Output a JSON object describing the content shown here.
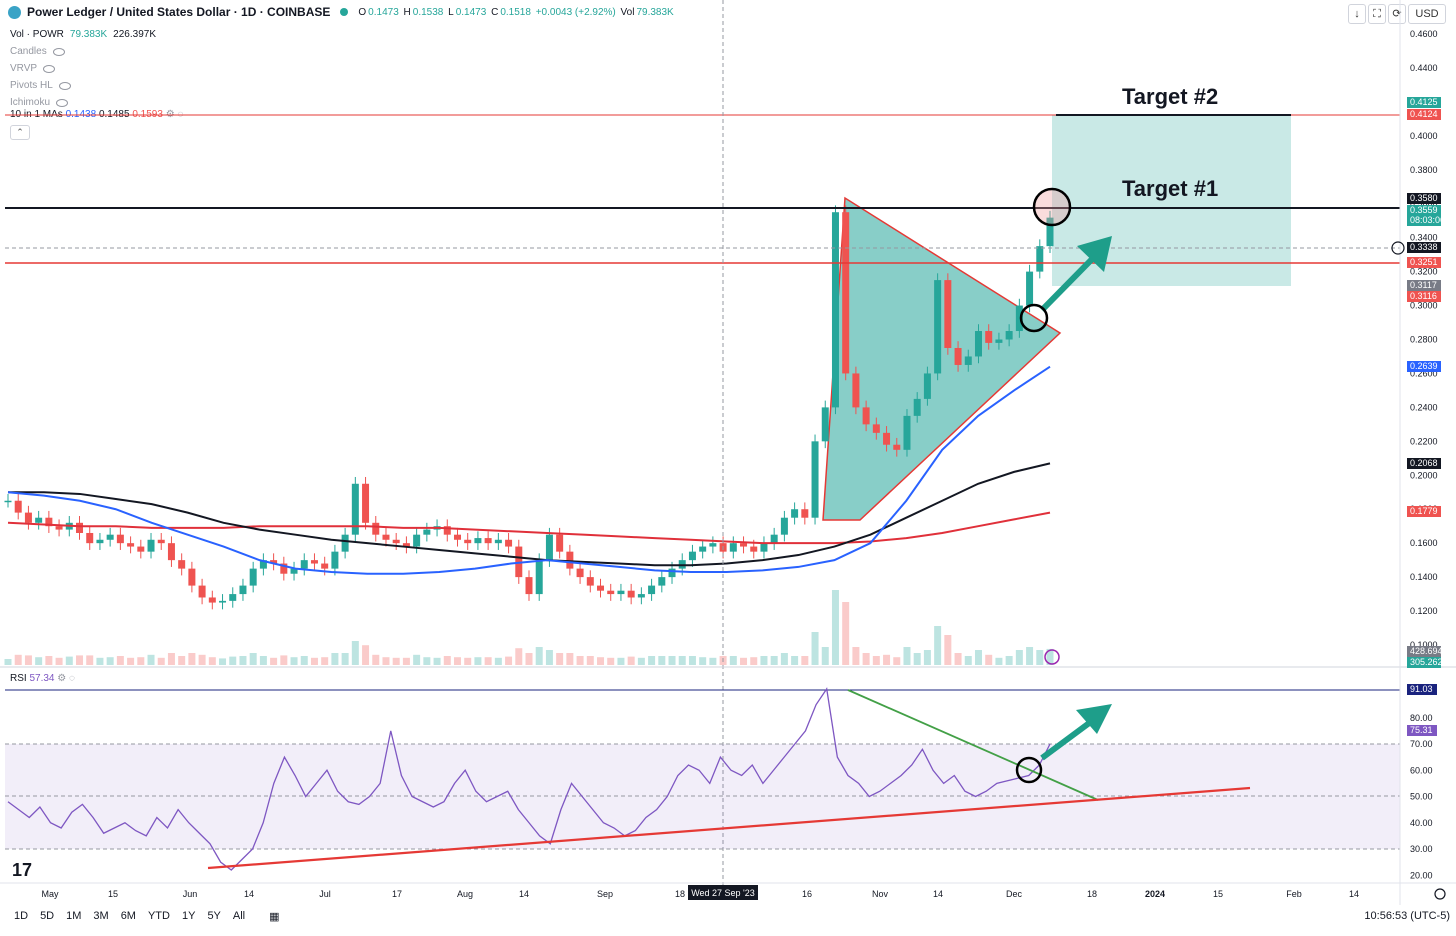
{
  "header": {
    "symbol_title": "Power Ledger / United States Dollar · 1D · COINBASE",
    "o_label": "O",
    "o_val": "0.1473",
    "h_label": "H",
    "h_val": "0.1538",
    "l_label": "L",
    "l_val": "0.1473",
    "c_label": "C",
    "c_val": "0.1518",
    "change": "+0.0043 (+2.92%)",
    "vol_label": "Vol",
    "vol_val": "79.383K"
  },
  "indicators": {
    "vol_name": "Vol · POWR",
    "vol_v1": "79.383K",
    "vol_v2": "226.397K",
    "list": [
      "Candles",
      "VRVP",
      "Pivots HL",
      "Ichimoku"
    ],
    "ma_name": "10 in 1 MAs",
    "ma_v1": "0.1438",
    "ma_v2": "0.1485",
    "ma_v3": "0.1593"
  },
  "top_buttons": {
    "down": "↓",
    "expand": "⛶",
    "camera": "⟳",
    "currency": "USD"
  },
  "annotations": {
    "target1": "Target #1",
    "target2": "Target #2"
  },
  "rsi": {
    "name": "RSI",
    "value": "57.34"
  },
  "bottom": {
    "ranges": [
      "1D",
      "5D",
      "1M",
      "3M",
      "6M",
      "YTD",
      "1Y",
      "5Y",
      "All"
    ],
    "clock": "10:56:53 (UTC-5)"
  },
  "colors": {
    "up": "#26a69a",
    "down": "#ef5350",
    "ma_blue": "#2962ff",
    "ma_black": "#131722",
    "ma_red": "#e0303a",
    "rsi": "#7e57c2",
    "teal_fill": "#26a69a"
  },
  "chart_data": [
    {
      "type": "line",
      "title": "Power Ledger / United States Dollar · 1D · COINBASE",
      "ylim": [
        0.09,
        0.47
      ],
      "y_ticks": [
        "0.4600",
        "0.4400",
        "0.4200",
        "0.4000",
        "0.3800",
        "0.3600",
        "0.3400",
        "0.3200",
        "0.3000",
        "0.2800",
        "0.2600",
        "0.2400",
        "0.2200",
        "0.2000",
        "0.1800",
        "0.1600",
        "0.1400",
        "0.1200",
        "0.1000"
      ],
      "x_ticks": [
        "May",
        "15",
        "Jun",
        "14",
        "Jul",
        "17",
        "Aug",
        "14",
        "Sep",
        "18",
        "16",
        "Nov",
        "14",
        "Dec",
        "18",
        "2024",
        "15",
        "Feb",
        "14"
      ],
      "crosshair_date": "Wed 27 Sep '23",
      "price_tags": [
        {
          "value": "0.4125",
          "color": "#26a69a"
        },
        {
          "value": "0.4124",
          "color": "#ef5350"
        },
        {
          "value": "0.3580",
          "color": "#131722"
        },
        {
          "value": "0.3559",
          "color": "#26a69a"
        },
        {
          "value": "08:03:06",
          "color": "#26a69a"
        },
        {
          "value": "0.3338",
          "color": "#131722"
        },
        {
          "value": "0.3251",
          "color": "#ef5350"
        },
        {
          "value": "0.3117",
          "color": "#787b86"
        },
        {
          "value": "0.3116",
          "color": "#ef5350"
        },
        {
          "value": "0.2639",
          "color": "#2962ff"
        },
        {
          "value": "0.2068",
          "color": "#131722"
        },
        {
          "value": "0.1779",
          "color": "#ef5350"
        },
        {
          "value": "428.694K",
          "color": "#787b86"
        },
        {
          "value": "305.262K",
          "color": "#26a69a"
        }
      ],
      "close_series": [
        0.185,
        0.178,
        0.172,
        0.175,
        0.17,
        0.168,
        0.172,
        0.166,
        0.16,
        0.162,
        0.165,
        0.16,
        0.158,
        0.155,
        0.162,
        0.16,
        0.15,
        0.145,
        0.135,
        0.128,
        0.125,
        0.126,
        0.13,
        0.135,
        0.145,
        0.15,
        0.148,
        0.142,
        0.145,
        0.15,
        0.148,
        0.145,
        0.155,
        0.165,
        0.195,
        0.172,
        0.165,
        0.162,
        0.16,
        0.158,
        0.165,
        0.168,
        0.17,
        0.165,
        0.162,
        0.16,
        0.163,
        0.16,
        0.162,
        0.158,
        0.14,
        0.13,
        0.15,
        0.165,
        0.155,
        0.145,
        0.14,
        0.135,
        0.132,
        0.13,
        0.132,
        0.128,
        0.13,
        0.135,
        0.14,
        0.145,
        0.15,
        0.155,
        0.158,
        0.16,
        0.155,
        0.16,
        0.158,
        0.155,
        0.16,
        0.165,
        0.175,
        0.18,
        0.175,
        0.22,
        0.24,
        0.355,
        0.26,
        0.24,
        0.23,
        0.225,
        0.218,
        0.215,
        0.235,
        0.245,
        0.26,
        0.315,
        0.275,
        0.265,
        0.27,
        0.285,
        0.278,
        0.28,
        0.285,
        0.3,
        0.32,
        0.335,
        0.3518
      ],
      "ma_blue": [
        0.19,
        0.188,
        0.185,
        0.18,
        0.172,
        0.165,
        0.158,
        0.15,
        0.145,
        0.143,
        0.142,
        0.142,
        0.143,
        0.145,
        0.148,
        0.15,
        0.148,
        0.146,
        0.144,
        0.143,
        0.143,
        0.144,
        0.146,
        0.15,
        0.16,
        0.185,
        0.215,
        0.235,
        0.25,
        0.264
      ],
      "ma_black": [
        0.19,
        0.19,
        0.189,
        0.186,
        0.183,
        0.178,
        0.172,
        0.168,
        0.165,
        0.162,
        0.16,
        0.158,
        0.156,
        0.154,
        0.152,
        0.15,
        0.149,
        0.148,
        0.147,
        0.147,
        0.148,
        0.15,
        0.153,
        0.158,
        0.165,
        0.175,
        0.185,
        0.195,
        0.202,
        0.207
      ],
      "ma_red": [
        0.172,
        0.171,
        0.17,
        0.17,
        0.169,
        0.169,
        0.169,
        0.17,
        0.17,
        0.17,
        0.17,
        0.169,
        0.169,
        0.168,
        0.167,
        0.166,
        0.165,
        0.164,
        0.163,
        0.162,
        0.161,
        0.16,
        0.16,
        0.16,
        0.161,
        0.163,
        0.166,
        0.17,
        0.174,
        0.178
      ],
      "levels": [
        {
          "name": "target2",
          "value": 0.4124
        },
        {
          "name": "resistance",
          "value": 0.358
        },
        {
          "name": "support",
          "value": 0.3251
        }
      ]
    },
    {
      "type": "line",
      "title": "RSI",
      "ylim": [
        18,
        93
      ],
      "y_ticks": [
        "80.00",
        "70.00",
        "60.00",
        "50.00",
        "40.00",
        "30.00",
        "20.00"
      ],
      "price_tags": [
        {
          "value": "91.03",
          "color": "#1a237e"
        },
        {
          "value": "75.31",
          "color": "#7e57c2"
        }
      ],
      "values": [
        48,
        45,
        42,
        46,
        40,
        38,
        44,
        47,
        42,
        36,
        38,
        40,
        37,
        35,
        42,
        38,
        45,
        40,
        36,
        32,
        25,
        22,
        26,
        30,
        40,
        55,
        65,
        58,
        50,
        55,
        60,
        52,
        48,
        47,
        50,
        55,
        75,
        58,
        50,
        48,
        46,
        48,
        55,
        60,
        52,
        48,
        50,
        52,
        45,
        40,
        35,
        32,
        45,
        55,
        50,
        45,
        40,
        38,
        35,
        37,
        42,
        45,
        50,
        58,
        62,
        60,
        55,
        65,
        60,
        58,
        62,
        55,
        60,
        65,
        70,
        75,
        85,
        91,
        65,
        58,
        55,
        50,
        52,
        55,
        58,
        62,
        68,
        60,
        55,
        58,
        52,
        50,
        52,
        55,
        56,
        57,
        58,
        62,
        70
      ]
    }
  ]
}
